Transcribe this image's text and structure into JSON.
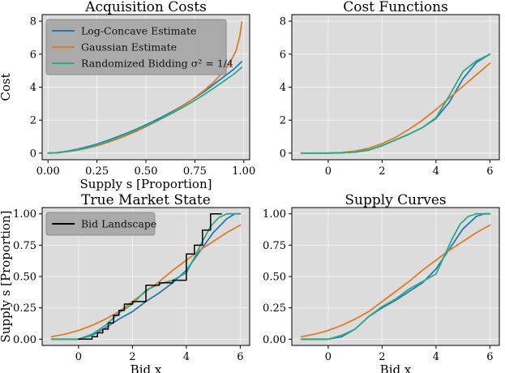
{
  "colors": {
    "log_concave": "#2878b5",
    "gaussian": "#e07b28",
    "randomized": "#2eaa84",
    "bid": "#000000",
    "panel_bg": "#dcdcdc",
    "grid": "#f2f2f2"
  },
  "chart_data": [
    {
      "id": "acquisition",
      "type": "line",
      "title": "Acquisition Costs",
      "xlabel": "Supply s [Proportion]",
      "ylabel": "Cost",
      "xlim": [
        -0.03,
        1.03
      ],
      "ylim": [
        -0.4,
        8.4
      ],
      "xticks": [
        0.0,
        0.25,
        0.5,
        0.75,
        1.0
      ],
      "xtick_labels": [
        "0.00",
        "0.25",
        "0.50",
        "0.75",
        "1.00"
      ],
      "yticks": [
        0,
        2,
        4,
        6,
        8
      ],
      "ytick_labels": [
        "0",
        "2",
        "4",
        "6",
        "8"
      ],
      "legend": {
        "placement": "top-left",
        "entries": [
          {
            "label": "Log-Concave Estimate",
            "color_key": "log_concave"
          },
          {
            "label": "Gaussian Estimate",
            "color_key": "gaussian"
          },
          {
            "label": "Randomized Bidding σ² = 1/4",
            "color_key": "randomized"
          }
        ]
      },
      "series": [
        {
          "name": "Log-Concave Estimate",
          "color_key": "log_concave",
          "x": [
            0,
            0.05,
            0.1,
            0.15,
            0.2,
            0.25,
            0.3,
            0.35,
            0.4,
            0.45,
            0.5,
            0.55,
            0.6,
            0.65,
            0.7,
            0.75,
            0.8,
            0.85,
            0.9,
            0.95,
            0.99
          ],
          "y": [
            0,
            0.04,
            0.12,
            0.24,
            0.38,
            0.55,
            0.75,
            0.97,
            1.2,
            1.45,
            1.72,
            2.0,
            2.3,
            2.62,
            2.97,
            3.35,
            3.75,
            4.2,
            4.65,
            5.1,
            5.55
          ]
        },
        {
          "name": "Gaussian Estimate",
          "color_key": "gaussian",
          "x": [
            0,
            0.05,
            0.1,
            0.15,
            0.2,
            0.25,
            0.3,
            0.35,
            0.4,
            0.45,
            0.5,
            0.55,
            0.6,
            0.65,
            0.7,
            0.75,
            0.8,
            0.85,
            0.9,
            0.93,
            0.96,
            0.98,
            0.99
          ],
          "y": [
            0,
            0.03,
            0.09,
            0.18,
            0.3,
            0.45,
            0.63,
            0.84,
            1.07,
            1.32,
            1.6,
            1.9,
            2.22,
            2.57,
            2.95,
            3.37,
            3.83,
            4.35,
            5.0,
            5.5,
            6.2,
            7.1,
            7.95
          ]
        },
        {
          "name": "Randomized Bidding σ² = 1/4",
          "color_key": "randomized",
          "x": [
            0,
            0.05,
            0.1,
            0.15,
            0.2,
            0.25,
            0.3,
            0.35,
            0.4,
            0.45,
            0.5,
            0.55,
            0.6,
            0.65,
            0.7,
            0.75,
            0.8,
            0.85,
            0.9,
            0.95,
            0.99
          ],
          "y": [
            0,
            0.03,
            0.1,
            0.2,
            0.33,
            0.5,
            0.7,
            0.92,
            1.15,
            1.4,
            1.66,
            1.93,
            2.22,
            2.52,
            2.85,
            3.2,
            3.57,
            3.97,
            4.38,
            4.8,
            5.2
          ]
        }
      ]
    },
    {
      "id": "cost",
      "type": "line",
      "title": "Cost Functions",
      "xlabel": "",
      "ylabel": "",
      "xlim": [
        -1.35,
        6.35
      ],
      "ylim": [
        -0.4,
        8.4
      ],
      "xticks": [
        0,
        2,
        4,
        6
      ],
      "xtick_labels": [
        "0",
        "2",
        "4",
        "6"
      ],
      "yticks": [
        0,
        2,
        4,
        6,
        8
      ],
      "ytick_labels": [
        "0",
        "2",
        "4",
        "6",
        "8"
      ],
      "series": [
        {
          "name": "Log-Concave Estimate",
          "color_key": "log_concave",
          "x": [
            -1,
            0,
            0.5,
            1,
            1.5,
            2,
            2.5,
            3,
            3.5,
            4,
            4.5,
            5,
            5.5,
            6
          ],
          "y": [
            0,
            0,
            0.02,
            0.06,
            0.18,
            0.45,
            0.8,
            1.15,
            1.55,
            2.1,
            3.1,
            4.5,
            5.5,
            6.0
          ]
        },
        {
          "name": "Gaussian Estimate",
          "color_key": "gaussian",
          "x": [
            -1,
            0,
            0.5,
            1,
            1.5,
            2,
            2.5,
            3,
            3.5,
            4,
            4.5,
            5,
            5.5,
            6
          ],
          "y": [
            0,
            0.01,
            0.04,
            0.12,
            0.3,
            0.58,
            0.95,
            1.45,
            2.0,
            2.65,
            3.35,
            4.05,
            4.75,
            5.45
          ]
        },
        {
          "name": "Randomized Bidding σ² = 1/4",
          "color_key": "randomized",
          "x": [
            -1,
            0,
            0.5,
            1,
            1.5,
            2,
            2.5,
            3,
            3.5,
            4,
            4.5,
            5,
            5.5,
            6
          ],
          "y": [
            0,
            0,
            0.02,
            0.07,
            0.2,
            0.46,
            0.8,
            1.15,
            1.55,
            2.15,
            3.5,
            4.95,
            5.6,
            6.0
          ]
        }
      ]
    },
    {
      "id": "market",
      "type": "line",
      "title": "True Market State",
      "xlabel": "Bid x",
      "ylabel": "Supply s [Proportion]",
      "xlim": [
        -1.35,
        6.35
      ],
      "ylim": [
        -0.05,
        1.05
      ],
      "xticks": [
        0,
        2,
        4,
        6
      ],
      "xtick_labels": [
        "0",
        "2",
        "4",
        "6"
      ],
      "yticks": [
        0,
        0.25,
        0.5,
        0.75,
        1.0
      ],
      "ytick_labels": [
        "0.00",
        "0.25",
        "0.50",
        "0.75",
        "1.00"
      ],
      "legend": {
        "placement": "top-left",
        "entries": [
          {
            "label": "Bid Landscape",
            "color_key": "bid"
          }
        ]
      },
      "series": [
        {
          "name": "Log-Concave Estimate",
          "color_key": "log_concave",
          "x": [
            -1,
            0,
            0.5,
            1,
            1.5,
            2,
            2.5,
            3,
            3.5,
            4,
            4.5,
            5,
            5.5,
            5.8,
            6
          ],
          "y": [
            0,
            0,
            0.03,
            0.09,
            0.16,
            0.22,
            0.3,
            0.37,
            0.45,
            0.55,
            0.7,
            0.85,
            0.96,
            1.0,
            1.0
          ]
        },
        {
          "name": "Gaussian Estimate",
          "color_key": "gaussian",
          "x": [
            -1,
            -0.5,
            0,
            0.5,
            1,
            1.5,
            2,
            2.5,
            3,
            3.5,
            4,
            4.5,
            5,
            5.5,
            6
          ],
          "y": [
            0.02,
            0.04,
            0.07,
            0.11,
            0.16,
            0.22,
            0.3,
            0.38,
            0.46,
            0.55,
            0.63,
            0.71,
            0.78,
            0.85,
            0.91
          ]
        },
        {
          "name": "Randomized Bidding σ² = 1/4",
          "color_key": "randomized",
          "x": [
            -1,
            0,
            0.5,
            1,
            1.5,
            2,
            2.5,
            3,
            3.5,
            4,
            4.3,
            4.6,
            4.9,
            5.2,
            5.5,
            6
          ],
          "y": [
            0,
            0,
            0.04,
            0.11,
            0.21,
            0.28,
            0.39,
            0.44,
            0.47,
            0.53,
            0.65,
            0.78,
            0.9,
            0.97,
            1.0,
            1.0
          ]
        },
        {
          "name": "Bid Landscape",
          "color_key": "bid",
          "step": true,
          "x": [
            0,
            0.5,
            0.7,
            0.9,
            1.1,
            1.3,
            1.5,
            1.7,
            2.0,
            2.5,
            3.0,
            3.5,
            4.0,
            4.3,
            4.6,
            4.9,
            5.3
          ],
          "y": [
            0.0,
            0.02,
            0.05,
            0.08,
            0.13,
            0.19,
            0.23,
            0.28,
            0.3,
            0.43,
            0.45,
            0.47,
            0.68,
            0.75,
            0.87,
            1.0,
            1.0
          ]
        }
      ]
    },
    {
      "id": "supply",
      "type": "line",
      "title": "Supply Curves",
      "xlabel": "Bid x",
      "ylabel": "",
      "xlim": [
        -1.35,
        6.35
      ],
      "ylim": [
        -0.05,
        1.05
      ],
      "xticks": [
        0,
        2,
        4,
        6
      ],
      "xtick_labels": [
        "0",
        "2",
        "4",
        "6"
      ],
      "yticks": [
        0,
        0.25,
        0.5,
        0.75,
        1.0
      ],
      "ytick_labels": [
        "0.00",
        "0.25",
        "0.50",
        "0.75",
        "1.00"
      ],
      "series": [
        {
          "name": "Log-Concave Estimate",
          "color_key": "log_concave",
          "x": [
            -1,
            0,
            0.5,
            1,
            1.5,
            2,
            2.5,
            3,
            3.5,
            4,
            4.5,
            5,
            5.5,
            5.8,
            6
          ],
          "y": [
            0,
            0,
            0.02,
            0.08,
            0.18,
            0.25,
            0.31,
            0.38,
            0.45,
            0.56,
            0.72,
            0.88,
            0.98,
            1.0,
            1.0
          ]
        },
        {
          "name": "Gaussian Estimate",
          "color_key": "gaussian",
          "x": [
            -1,
            -0.5,
            0,
            0.5,
            1,
            1.5,
            2,
            2.5,
            3,
            3.5,
            4,
            4.5,
            5,
            5.5,
            6
          ],
          "y": [
            0.02,
            0.04,
            0.07,
            0.11,
            0.16,
            0.22,
            0.3,
            0.38,
            0.46,
            0.55,
            0.63,
            0.71,
            0.78,
            0.85,
            0.91
          ]
        },
        {
          "name": "Randomized Bidding σ² = 1/4",
          "color_key": "randomized",
          "x": [
            -1,
            0,
            0.5,
            1,
            1.5,
            2,
            2.5,
            3,
            3.5,
            4,
            4.3,
            4.6,
            4.9,
            5.2,
            5.5,
            6
          ],
          "y": [
            0,
            0,
            0.03,
            0.08,
            0.18,
            0.26,
            0.32,
            0.4,
            0.46,
            0.52,
            0.66,
            0.8,
            0.92,
            0.98,
            1.0,
            1.0
          ]
        }
      ]
    }
  ]
}
